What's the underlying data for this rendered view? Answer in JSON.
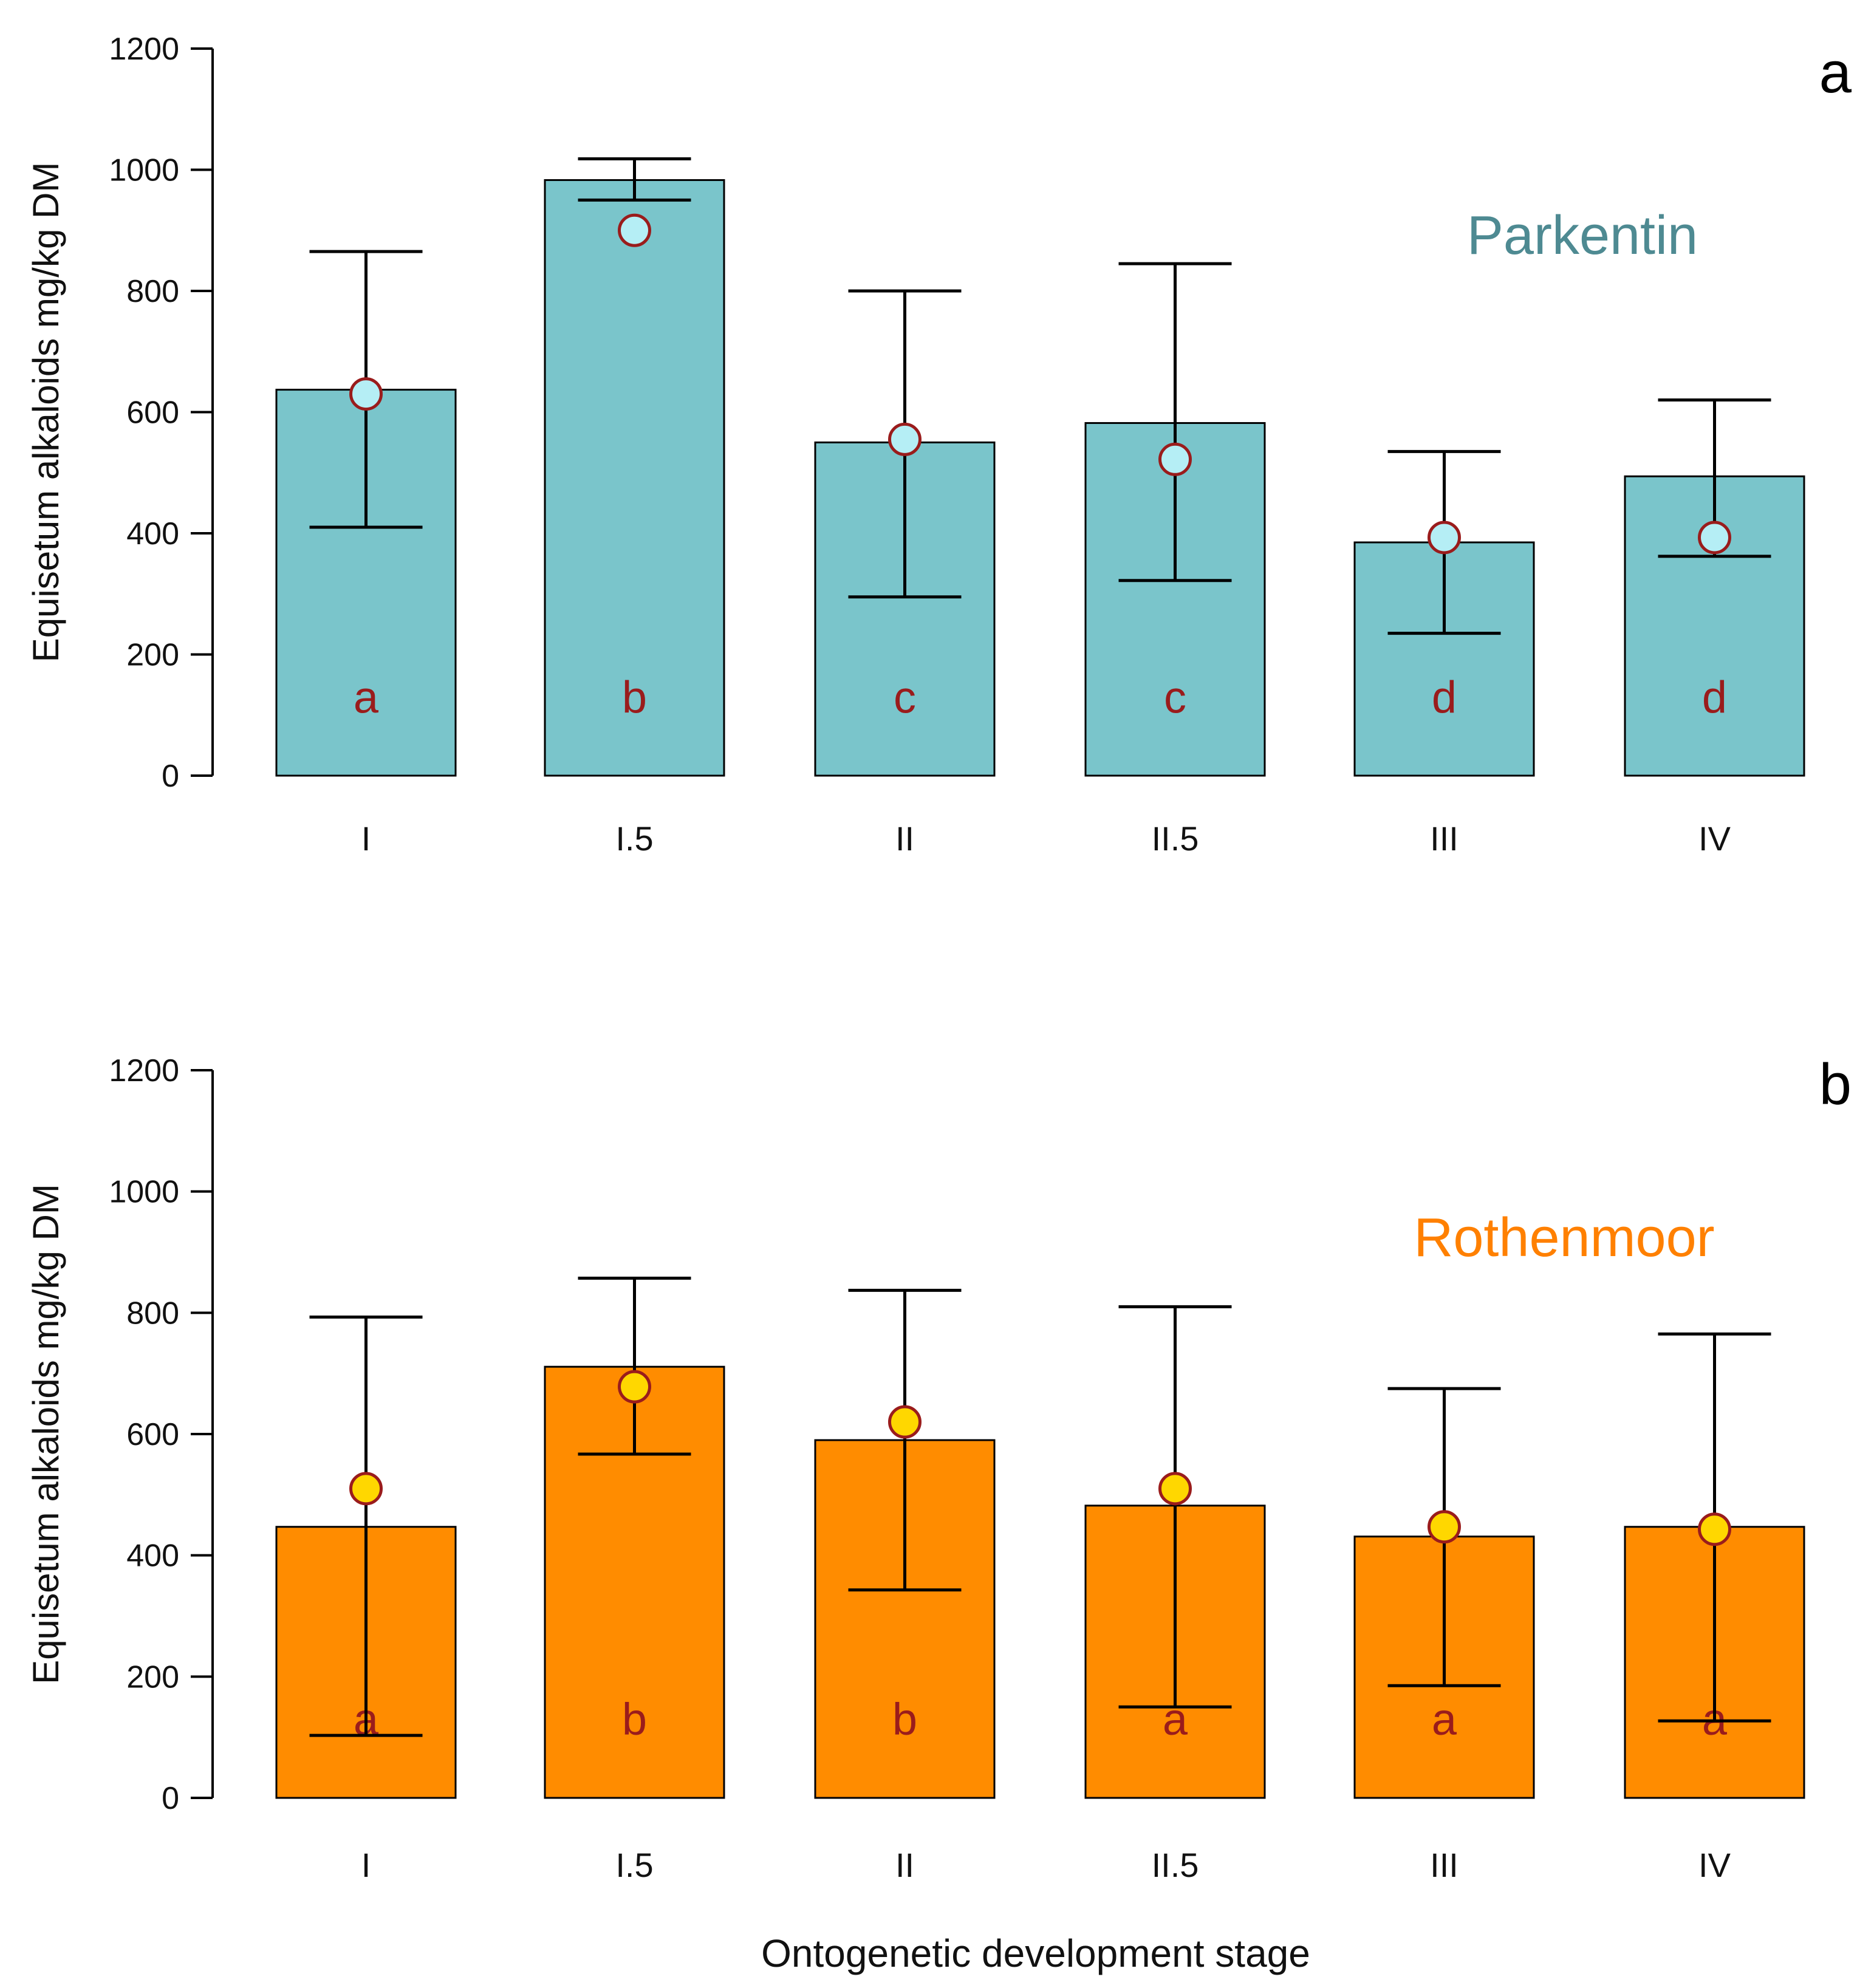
{
  "chart_data": [
    {
      "type": "bar",
      "panel_label": "a",
      "site_label": "Parkentin",
      "site_color": "#4e8a92",
      "bar_color": "#7ac5cb",
      "point_fill": "#b5eef5",
      "point_stroke": "#9a1c1c",
      "letter_color": "#9a1c1c",
      "ylabel": "Equisetum alkaloids  mg/kg DM",
      "ylim": [
        0,
        1200
      ],
      "yticks": [
        "0",
        "200",
        "400",
        "600",
        "800",
        "1000",
        "1200"
      ],
      "categories": [
        "I",
        "I.5",
        "II",
        "II.5",
        "III",
        "IV"
      ],
      "values": [
        637,
        983,
        550,
        582,
        385,
        494
      ],
      "points": [
        630,
        900,
        555,
        522,
        393,
        393
      ],
      "error_low": [
        410,
        950,
        295,
        322,
        235,
        362
      ],
      "error_high": [
        865,
        1018,
        800,
        845,
        535,
        620
      ],
      "letters": [
        "a",
        "b",
        "c",
        "c",
        "d",
        "d"
      ]
    },
    {
      "type": "bar",
      "panel_label": "b",
      "site_label": "Rothenmoor",
      "site_color": "#ff8000",
      "bar_color": "#ff8c00",
      "point_fill": "#ffd700",
      "point_stroke": "#9a1c1c",
      "letter_color": "#9a1c1c",
      "ylabel": "Equisetum alkaloids  mg/kg DM",
      "ylim": [
        0,
        1200
      ],
      "yticks": [
        "0",
        "200",
        "400",
        "600",
        "800",
        "1000",
        "1200"
      ],
      "categories": [
        "I",
        "I.5",
        "II",
        "II.5",
        "III",
        "IV"
      ],
      "values": [
        447,
        711,
        590,
        482,
        431,
        447
      ],
      "points": [
        510,
        678,
        620,
        510,
        447,
        443
      ],
      "error_low": [
        103,
        567,
        343,
        150,
        185,
        127
      ],
      "error_high": [
        793,
        857,
        837,
        810,
        675,
        765
      ],
      "letters": [
        "a",
        "b",
        "b",
        "a",
        "a",
        "a"
      ]
    }
  ],
  "xlabel": "Ontogenetic development stage"
}
